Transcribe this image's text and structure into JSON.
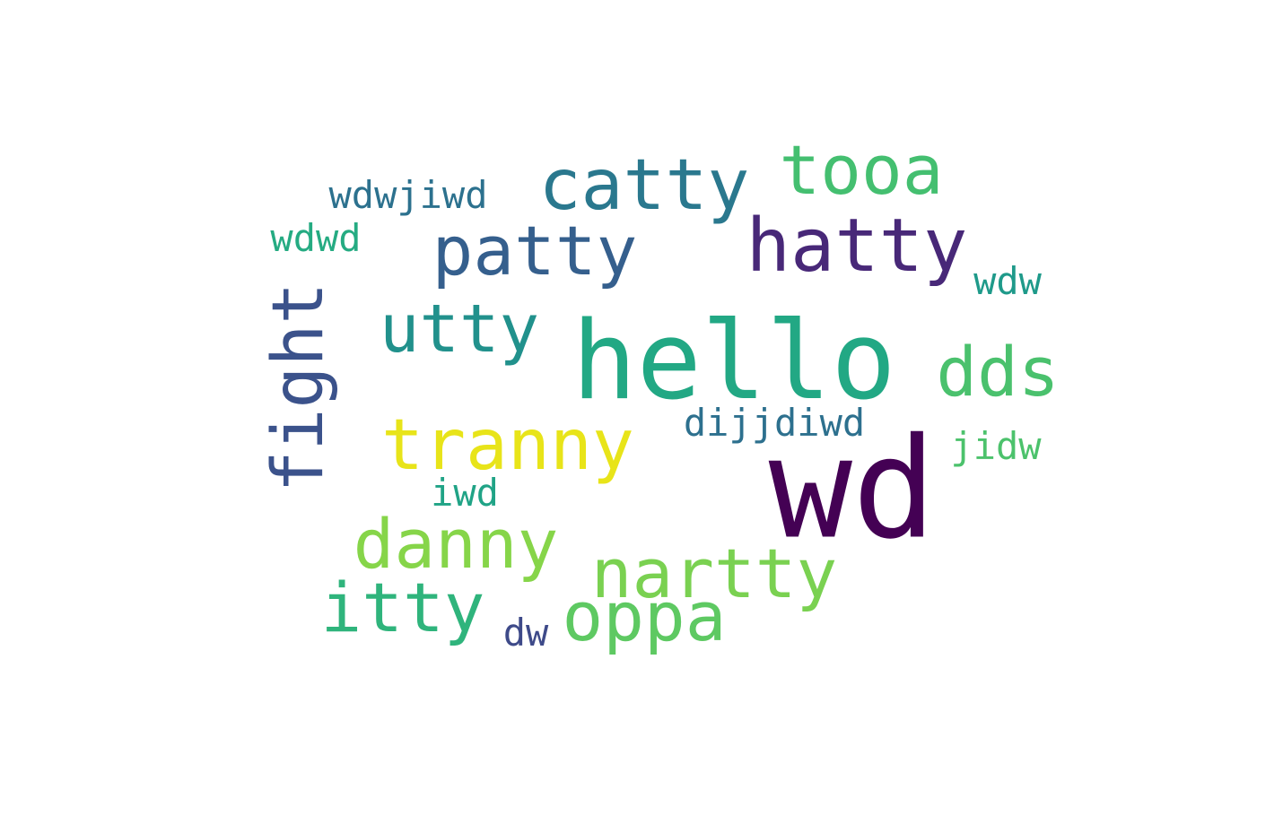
{
  "words": [
    {
      "key": "wd",
      "text": "wd",
      "color": "#440154"
    },
    {
      "key": "hello",
      "text": "hello",
      "color": "#22a884"
    },
    {
      "key": "hatty",
      "text": "hatty",
      "color": "#482878"
    },
    {
      "key": "catty",
      "text": "catty",
      "color": "#2a788e"
    },
    {
      "key": "patty",
      "text": "patty",
      "color": "#355f8d"
    },
    {
      "key": "tooa",
      "text": "tooa",
      "color": "#44bf70"
    },
    {
      "key": "utty",
      "text": "utty",
      "color": "#21918c"
    },
    {
      "key": "dds",
      "text": "dds",
      "color": "#4ac16d"
    },
    {
      "key": "fight",
      "text": "fight",
      "color": "#3b528b"
    },
    {
      "key": "tranny",
      "text": "tranny",
      "color": "#e8e419"
    },
    {
      "key": "nartty",
      "text": "nartty",
      "color": "#7ad151"
    },
    {
      "key": "danny",
      "text": "danny",
      "color": "#86d549"
    },
    {
      "key": "itty",
      "text": "itty",
      "color": "#2fb47c"
    },
    {
      "key": "oppa",
      "text": "oppa",
      "color": "#5ec962"
    },
    {
      "key": "wdwjiwd",
      "text": "wdwjiwd",
      "color": "#2c718e"
    },
    {
      "key": "wdwd",
      "text": "wdwd",
      "color": "#25ab82"
    },
    {
      "key": "wdw",
      "text": "wdw",
      "color": "#1f9a8a"
    },
    {
      "key": "dijjdiwd",
      "text": "dijjdiwd",
      "color": "#2d708e"
    },
    {
      "key": "jidw",
      "text": "jidw",
      "color": "#4cc26c"
    },
    {
      "key": "iwd",
      "text": "iwd",
      "color": "#20a386"
    },
    {
      "key": "dw",
      "text": "dw",
      "color": "#3e4a89"
    }
  ]
}
